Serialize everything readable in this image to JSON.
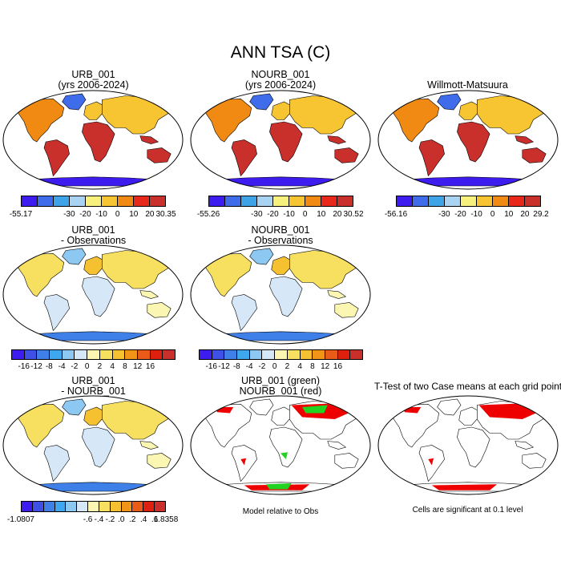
{
  "title": "ANN TSA (C)",
  "palettes": {
    "abs": [
      "#3d1cf0",
      "#3f6cea",
      "#3fa3e8",
      "#a8d3f2",
      "#f7f07c",
      "#f7c531",
      "#f08a12",
      "#e8281a",
      "#c9302c"
    ],
    "diff": [
      "#3d1cf0",
      "#3f50e6",
      "#3f7fe8",
      "#3fa7ee",
      "#8cc8f2",
      "#d6e8f7",
      "#fbf6b2",
      "#f7e060",
      "#f5c130",
      "#f19418",
      "#ea5a18",
      "#e0200e",
      "#c9302c"
    ],
    "sig": {
      "urb": "#22d322",
      "nourb": "#ee0000",
      "ttest": "#ee0000"
    }
  },
  "panels": [
    {
      "id": "urb-001",
      "title_lines": [
        "URB_001",
        "(yrs 2006-2024)"
      ],
      "type": "abs",
      "colorbar": [
        "-55.17",
        "-30",
        "-20",
        "-10",
        "0",
        "10",
        "20",
        "30.35"
      ]
    },
    {
      "id": "nourb-001",
      "title_lines": [
        "NOURB_001",
        "(yrs 2006-2024)"
      ],
      "type": "abs",
      "colorbar": [
        "-55.26",
        "-30",
        "-20",
        "-10",
        "0",
        "10",
        "20",
        "30.52"
      ]
    },
    {
      "id": "willmott-matsuura",
      "title_lines": [
        "Willmott-Matsuura"
      ],
      "type": "abs",
      "colorbar": [
        "-56.16",
        "-30",
        "-20",
        "-10",
        "0",
        "10",
        "20",
        "29.2"
      ]
    },
    {
      "id": "urb-minus-obs",
      "title_lines": [
        "URB_001",
        "- Observations"
      ],
      "type": "diff",
      "colorbar": [
        "-16",
        "-12",
        "-8",
        "-4",
        "-2",
        "0",
        "2",
        "4",
        "8",
        "12",
        "16"
      ]
    },
    {
      "id": "nourb-minus-obs",
      "title_lines": [
        "NOURB_001",
        "- Observations"
      ],
      "type": "diff",
      "colorbar": [
        "-16",
        "-12",
        "-8",
        "-4",
        "-2",
        "0",
        "2",
        "4",
        "8",
        "12",
        "16"
      ]
    },
    {
      "id": "urb-minus-nourb",
      "title_lines": [
        "URB_001",
        "- NOURB_001"
      ],
      "type": "diff",
      "colorbar": [
        "-1.0807",
        "-.6",
        "-.4",
        "-.2",
        ".0",
        ".2",
        ".4",
        ".6",
        "1.8358"
      ]
    },
    {
      "id": "model-vs-obs",
      "title_lines": [
        "URB_001 (green)",
        "NOURB_001 (red)"
      ],
      "type": "sig",
      "note": "Model relative to Obs"
    },
    {
      "id": "ttest",
      "title_lines": [
        "T-Test of two Case means at each grid point"
      ],
      "type": "ttest",
      "note": "Cells are significant at 0.1 level"
    }
  ]
}
